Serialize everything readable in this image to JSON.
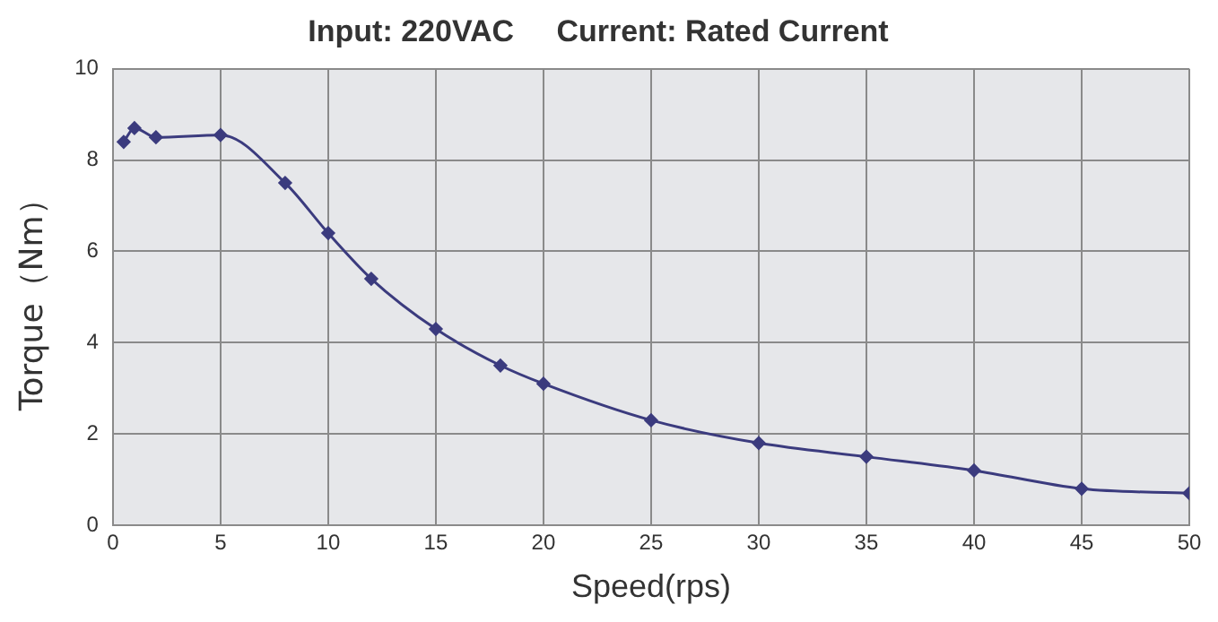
{
  "chart_data": {
    "type": "line",
    "title": "Input: 220VAC     Current: Rated Current",
    "xlabel": "Speed(rps)",
    "ylabel": "Torque（Nm）",
    "x": [
      0.5,
      1,
      2,
      5,
      8,
      10,
      12,
      15,
      18,
      20,
      25,
      30,
      35,
      40,
      45,
      50
    ],
    "series": [
      {
        "color": "#3b3b7e",
        "values": [
          8.4,
          8.7,
          8.5,
          8.55,
          7.5,
          6.4,
          5.4,
          4.3,
          3.5,
          3.1,
          2.3,
          1.8,
          1.5,
          1.2,
          0.8,
          0.7
        ]
      }
    ],
    "xlim": [
      0,
      50
    ],
    "xticks": [
      0,
      5,
      10,
      15,
      20,
      25,
      30,
      35,
      40,
      45,
      50
    ],
    "ylim": [
      0,
      10
    ],
    "yticks": [
      0,
      2,
      4,
      6,
      8,
      10
    ],
    "grid": true,
    "legend": false,
    "marker": "diamond",
    "line_style": "solid"
  }
}
